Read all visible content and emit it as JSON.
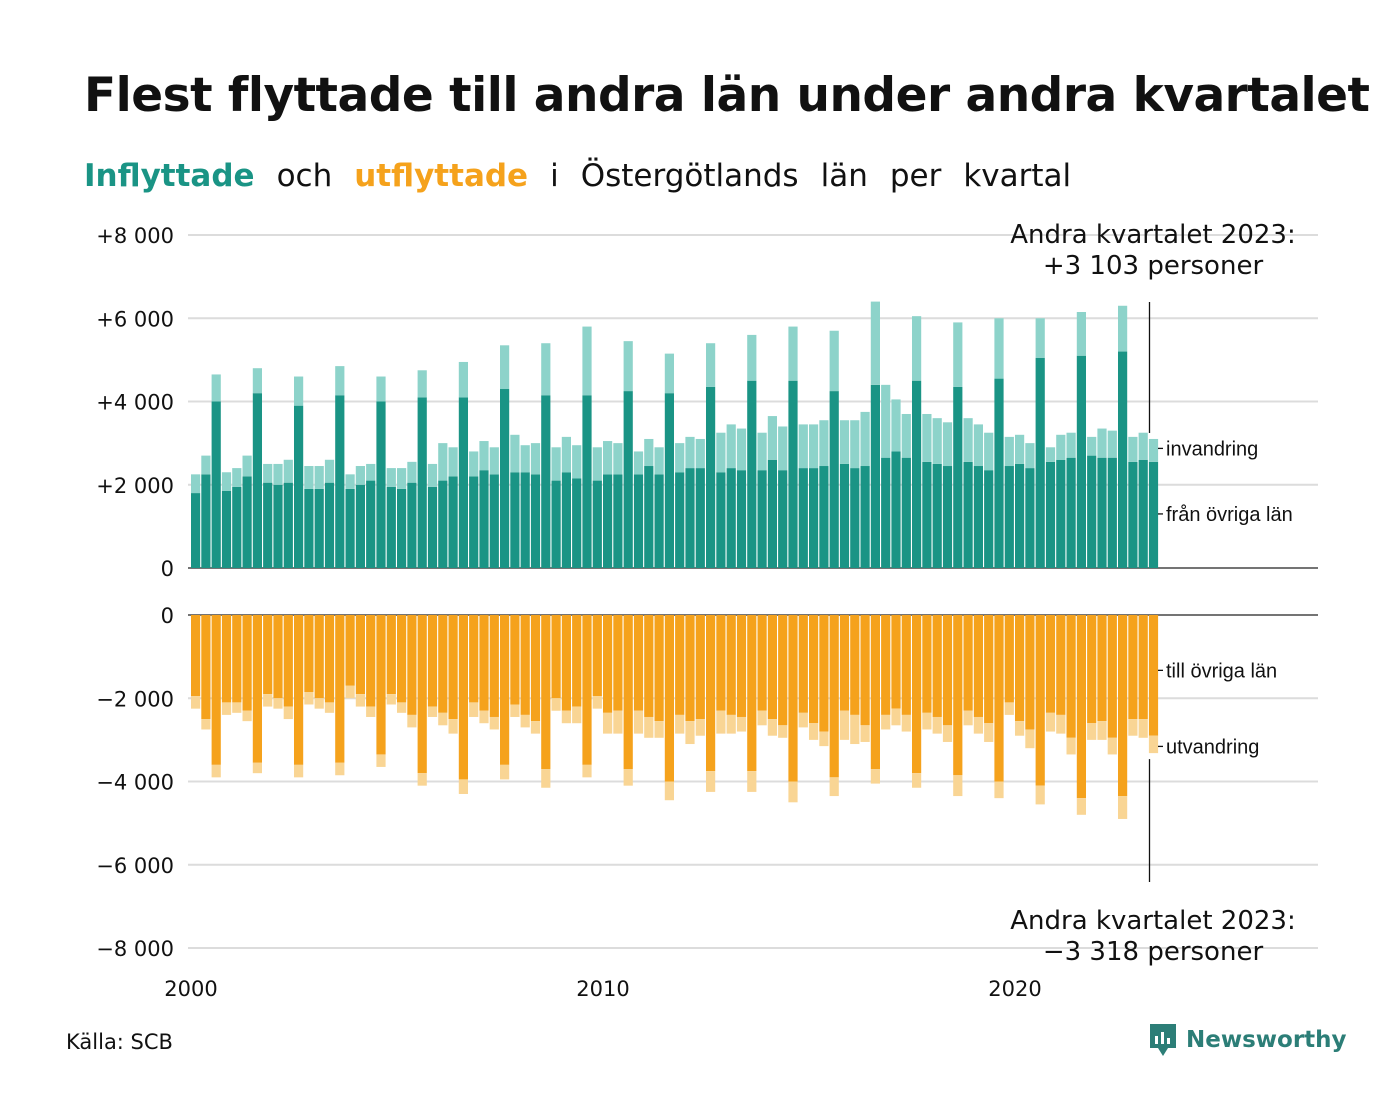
{
  "title": "Flest flyttade till andra län under andra kvartalet",
  "subtitle": {
    "inflyttade": "Inflyttade",
    "och": "och",
    "utflyttade": "utflyttade",
    "rest_i": "i",
    "rest_lan": "Östergötlands",
    "rest_lan2": "län",
    "rest_per": "per",
    "rest_kvartal": "kvartal"
  },
  "source": "Källa: SCB",
  "brand": "Newsworthy",
  "colors": {
    "in_main": "#1a9485",
    "in_light": "#8dd3ca",
    "out_main": "#f5a21c",
    "out_light": "#f9d594",
    "grid": "#dcdcdc"
  },
  "annotations": {
    "top_line1": "Andra kvartalet 2023:",
    "top_line2": "+3 103 personer",
    "bottom_line1": "Andra kvartalet 2023:",
    "bottom_line2": "−3 318 personer"
  },
  "chart_data": {
    "type": "bar",
    "title": "Flest flyttade till andra län under andra kvartalet",
    "x_ticks": [
      "2000",
      "2010",
      "2020"
    ],
    "x_tick_years": [
      2000,
      2010,
      2020
    ],
    "top_panel": {
      "y_ticks": [
        "+8 000",
        "+6 000",
        "+4 000",
        "+2 000",
        "0"
      ],
      "y_tick_values": [
        8000,
        6000,
        4000,
        2000,
        0
      ],
      "ylim": [
        0,
        8000
      ],
      "legend": [
        "invandring",
        "från övriga län"
      ]
    },
    "bottom_panel": {
      "y_ticks": [
        "0",
        "−2 000",
        "−4 000",
        "−6 000",
        "−8 000"
      ],
      "y_tick_values": [
        0,
        -2000,
        -4000,
        -6000,
        -8000
      ],
      "ylim": [
        -8000,
        0
      ],
      "legend": [
        "till övriga län",
        "utvandring"
      ]
    },
    "first_quarter": "2000Q1",
    "last_quarter": "2023Q2",
    "series": [
      {
        "name": "från övriga län",
        "values": [
          1800,
          2250,
          4000,
          1850,
          1950,
          2200,
          4200,
          2050,
          2000,
          2050,
          3900,
          1900,
          1900,
          2050,
          4150,
          1900,
          2000,
          2100,
          4000,
          1950,
          1900,
          2050,
          4100,
          1950,
          2100,
          2200,
          4100,
          2200,
          2350,
          2250,
          4300,
          2300,
          2300,
          2250,
          4150,
          2100,
          2300,
          2150,
          4150,
          2100,
          2250,
          2250,
          4250,
          2250,
          2450,
          2250,
          4200,
          2300,
          2400,
          2400,
          4350,
          2300,
          2400,
          2350,
          4500,
          2350,
          2600,
          2350,
          4500,
          2400,
          2400,
          2450,
          4250,
          2500,
          2400,
          2450,
          4400,
          2650,
          2800,
          2650,
          4500,
          2550,
          2500,
          2450,
          4350,
          2550,
          2450,
          2350,
          4550,
          2450,
          2500,
          2400,
          5050,
          2550,
          2600,
          2650,
          5100,
          2700,
          2650,
          2650,
          5200,
          2550,
          2600,
          2550
        ]
      },
      {
        "name": "invandring",
        "values": [
          450,
          450,
          650,
          450,
          450,
          500,
          600,
          450,
          500,
          550,
          700,
          550,
          550,
          550,
          700,
          350,
          450,
          400,
          600,
          450,
          500,
          500,
          650,
          550,
          900,
          700,
          850,
          600,
          700,
          650,
          1050,
          900,
          650,
          750,
          1250,
          800,
          850,
          800,
          1650,
          800,
          800,
          750,
          1200,
          550,
          650,
          650,
          950,
          700,
          750,
          700,
          1050,
          950,
          1050,
          1000,
          1100,
          900,
          1050,
          1050,
          1300,
          1050,
          1050,
          1100,
          1450,
          1050,
          1150,
          1300,
          2000,
          1750,
          1250,
          1050,
          1550,
          1150,
          1100,
          1050,
          1550,
          1050,
          1000,
          900,
          1450,
          700,
          700,
          600,
          950,
          350,
          600,
          600,
          1050,
          450,
          700,
          650,
          1100,
          600,
          650,
          550
        ]
      },
      {
        "name": "till övriga län",
        "values": [
          1950,
          2500,
          3600,
          2100,
          2100,
          2300,
          3550,
          1900,
          2000,
          2200,
          3600,
          1850,
          2000,
          2100,
          3550,
          1700,
          1900,
          2200,
          3350,
          1900,
          2100,
          2400,
          3800,
          2200,
          2350,
          2500,
          3950,
          2100,
          2300,
          2450,
          3600,
          2150,
          2400,
          2550,
          3700,
          2000,
          2300,
          2200,
          3600,
          1950,
          2350,
          2300,
          3700,
          2300,
          2450,
          2550,
          4000,
          2400,
          2550,
          2500,
          3750,
          2300,
          2400,
          2450,
          3750,
          2300,
          2500,
          2650,
          4000,
          2350,
          2600,
          2800,
          3900,
          2300,
          2400,
          2650,
          3700,
          2400,
          2250,
          2400,
          3800,
          2350,
          2450,
          2650,
          3850,
          2300,
          2450,
          2600,
          4000,
          2100,
          2550,
          2750,
          4100,
          2350,
          2400,
          2950,
          4400,
          2600,
          2550,
          2950,
          4350,
          2500,
          2500,
          2900
        ]
      },
      {
        "name": "utvandring",
        "values": [
          300,
          250,
          300,
          300,
          250,
          250,
          250,
          300,
          250,
          300,
          300,
          300,
          250,
          250,
          300,
          300,
          300,
          250,
          300,
          250,
          250,
          300,
          300,
          250,
          300,
          350,
          350,
          350,
          300,
          300,
          350,
          300,
          300,
          300,
          450,
          300,
          300,
          400,
          300,
          300,
          500,
          550,
          400,
          550,
          500,
          400,
          450,
          450,
          550,
          400,
          500,
          550,
          450,
          350,
          500,
          350,
          400,
          300,
          500,
          350,
          400,
          350,
          450,
          700,
          700,
          400,
          350,
          350,
          400,
          400,
          350,
          400,
          400,
          400,
          500,
          350,
          400,
          450,
          400,
          300,
          350,
          450,
          450,
          450,
          450,
          400,
          400,
          400,
          450,
          400,
          550,
          400,
          450,
          418
        ]
      }
    ]
  }
}
